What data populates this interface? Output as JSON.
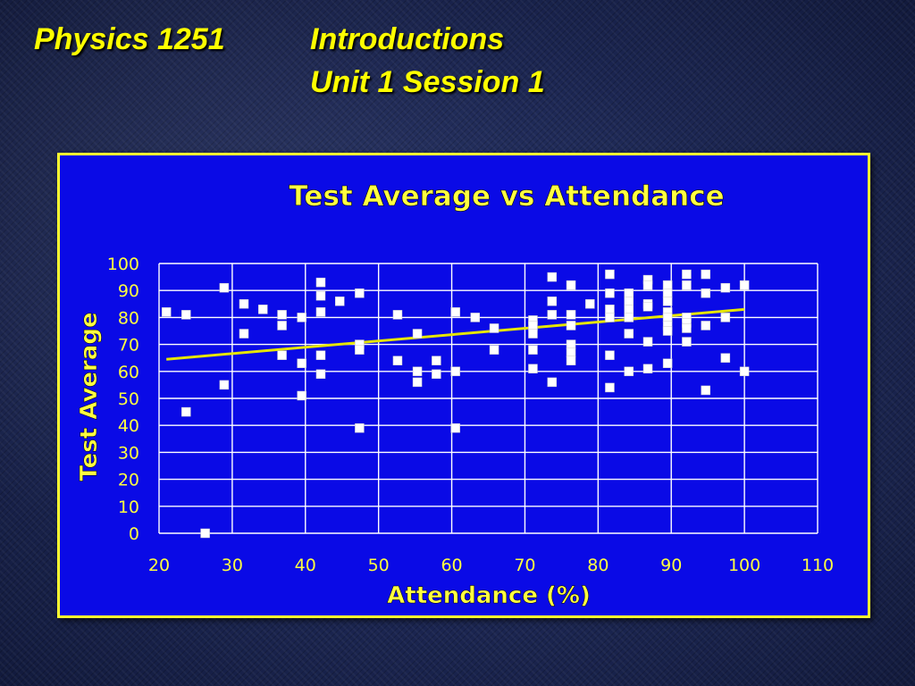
{
  "slide": {
    "course": "Physics 1251",
    "topic": "Introductions",
    "session": "Unit 1 Session 1"
  },
  "colors": {
    "background": "#1b2550",
    "title_text": "#ffff00",
    "chart_background": "#0a0ae6",
    "chart_border": "#ffff30",
    "gridlines": "#ffffff",
    "markers": "#ffffff",
    "trendline": "#e6e600",
    "chart_text": "#ffff40"
  },
  "chart_data": {
    "type": "scatter",
    "title": "Test Average vs Attendance",
    "xlabel": "Attendance (%)",
    "ylabel": "Test Average",
    "xlim": [
      20,
      110
    ],
    "ylim": [
      0,
      100
    ],
    "xticks": [
      20,
      30,
      40,
      50,
      60,
      70,
      80,
      90,
      100,
      110
    ],
    "yticks": [
      0,
      10,
      20,
      30,
      40,
      50,
      60,
      70,
      80,
      90,
      100
    ],
    "grid": true,
    "legend": "none",
    "points": [
      [
        21,
        82
      ],
      [
        23.7,
        81
      ],
      [
        23.7,
        45
      ],
      [
        26.3,
        0
      ],
      [
        28.9,
        91
      ],
      [
        28.9,
        55
      ],
      [
        31.6,
        85
      ],
      [
        31.6,
        74
      ],
      [
        34.2,
        83
      ],
      [
        36.8,
        81
      ],
      [
        36.8,
        77
      ],
      [
        36.8,
        66
      ],
      [
        39.5,
        80
      ],
      [
        39.5,
        63
      ],
      [
        39.5,
        51
      ],
      [
        42.1,
        93
      ],
      [
        42.1,
        88
      ],
      [
        42.1,
        82
      ],
      [
        42.1,
        66
      ],
      [
        42.1,
        59
      ],
      [
        44.7,
        86
      ],
      [
        47.4,
        89
      ],
      [
        47.4,
        70
      ],
      [
        47.4,
        68
      ],
      [
        47.4,
        39
      ],
      [
        52.6,
        81
      ],
      [
        52.6,
        64
      ],
      [
        55.3,
        74
      ],
      [
        55.3,
        60
      ],
      [
        55.3,
        56
      ],
      [
        57.9,
        64
      ],
      [
        57.9,
        59
      ],
      [
        60.5,
        82
      ],
      [
        60.5,
        60
      ],
      [
        60.5,
        39
      ],
      [
        63.2,
        80
      ],
      [
        65.8,
        76
      ],
      [
        65.8,
        68
      ],
      [
        71.1,
        79
      ],
      [
        71.1,
        77
      ],
      [
        71.1,
        74
      ],
      [
        71.1,
        68
      ],
      [
        71.1,
        61
      ],
      [
        73.7,
        95
      ],
      [
        73.7,
        86
      ],
      [
        73.7,
        81
      ],
      [
        73.7,
        56
      ],
      [
        76.3,
        92
      ],
      [
        76.3,
        81
      ],
      [
        76.3,
        77
      ],
      [
        76.3,
        70
      ],
      [
        76.3,
        67
      ],
      [
        76.3,
        64
      ],
      [
        78.9,
        85
      ],
      [
        81.6,
        96
      ],
      [
        81.6,
        89
      ],
      [
        81.6,
        83
      ],
      [
        81.6,
        80
      ],
      [
        81.6,
        66
      ],
      [
        81.6,
        54
      ],
      [
        84.2,
        89
      ],
      [
        84.2,
        86
      ],
      [
        84.2,
        83
      ],
      [
        84.2,
        80
      ],
      [
        84.2,
        74
      ],
      [
        84.2,
        60
      ],
      [
        86.8,
        94
      ],
      [
        86.8,
        92
      ],
      [
        86.8,
        85
      ],
      [
        86.8,
        84
      ],
      [
        86.8,
        71
      ],
      [
        86.8,
        61
      ],
      [
        89.5,
        92
      ],
      [
        89.5,
        89
      ],
      [
        89.5,
        86
      ],
      [
        89.5,
        82
      ],
      [
        89.5,
        80
      ],
      [
        89.5,
        77
      ],
      [
        89.5,
        75
      ],
      [
        89.5,
        63
      ],
      [
        92.1,
        96
      ],
      [
        92.1,
        92
      ],
      [
        92.1,
        80
      ],
      [
        92.1,
        78
      ],
      [
        92.1,
        76
      ],
      [
        92.1,
        71
      ],
      [
        94.7,
        96
      ],
      [
        94.7,
        89
      ],
      [
        94.7,
        77
      ],
      [
        94.7,
        53
      ],
      [
        97.4,
        91
      ],
      [
        97.4,
        80
      ],
      [
        97.4,
        65
      ],
      [
        100,
        92
      ],
      [
        100,
        60
      ]
    ],
    "trendline": {
      "x": [
        21,
        100
      ],
      "y": [
        64.5,
        83
      ]
    }
  }
}
